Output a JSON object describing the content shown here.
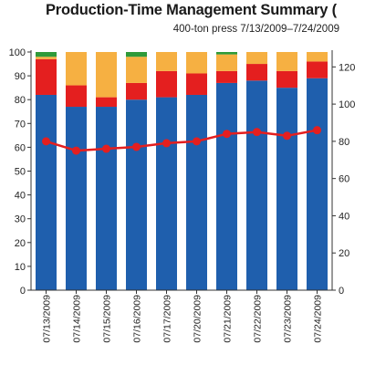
{
  "chart_data": {
    "type": "bar",
    "title": "Production-Time Management Summary (",
    "subtitle": "400-ton press 7/13/2009–7/24/2009",
    "categories": [
      "07/13/2009",
      "07/14/2009",
      "07/15/2009",
      "07/16/2009",
      "07/17/2009",
      "07/20/2009",
      "07/21/2009",
      "07/22/2009",
      "07/23/2009",
      "07/24/2009"
    ],
    "stacked": true,
    "ylim": [
      0,
      100
    ],
    "yticks": [
      0,
      10,
      20,
      30,
      40,
      50,
      60,
      70,
      80,
      90,
      100
    ],
    "y2lim": [
      0,
      128
    ],
    "y2ticks": [
      0,
      20,
      40,
      60,
      80,
      100,
      120
    ],
    "grid": false,
    "series": [
      {
        "color": "#1f5fad",
        "values": [
          82,
          77,
          77,
          80,
          81,
          82,
          87,
          88,
          85,
          89
        ]
      },
      {
        "color": "#e41f1f",
        "values": [
          15,
          9,
          4,
          7,
          11,
          9,
          5,
          7,
          7,
          7
        ]
      },
      {
        "color": "#f6b042",
        "values": [
          1,
          14,
          19,
          11,
          8,
          9,
          7,
          5,
          8,
          4
        ]
      },
      {
        "color": "#2f9a3a",
        "values": [
          2,
          0,
          0,
          2,
          0,
          0,
          1,
          0,
          0,
          0
        ]
      }
    ],
    "line_series": {
      "axis": "right",
      "color": "#e41f1f",
      "values": [
        80,
        75,
        76,
        77,
        79,
        80,
        84,
        85,
        83,
        86
      ]
    }
  }
}
